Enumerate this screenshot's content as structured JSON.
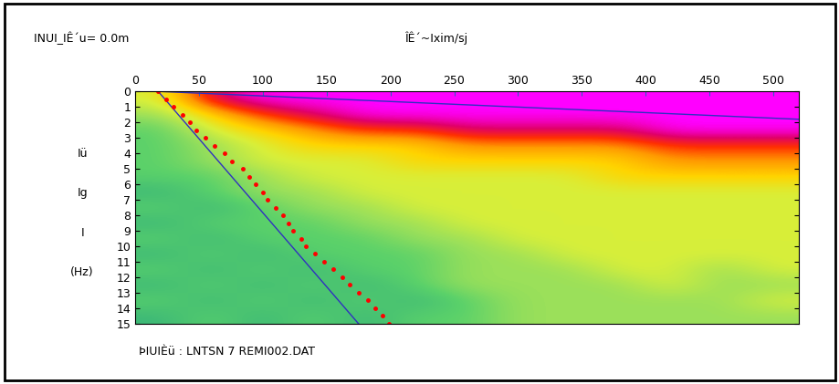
{
  "chart_data": {
    "type": "heatmap",
    "title": "ÎÊ´~Ixim/sj",
    "subtitle": "INUI_IÊ´u= 0.0m",
    "footer": "ÞIUIÈü : LNTSN 7 REMI002.DAT",
    "ylabel": [
      "Iü",
      "Ig",
      "I",
      "(Hz)"
    ],
    "xlim": [
      0,
      520
    ],
    "xticks": [
      0,
      50,
      100,
      150,
      200,
      250,
      300,
      350,
      400,
      450,
      500
    ],
    "ylim": [
      15,
      0
    ],
    "yticks": [
      0,
      1,
      2,
      3,
      4,
      5,
      6,
      7,
      8,
      9,
      10,
      11,
      12,
      13,
      14,
      15
    ],
    "x_edges": [
      0,
      40,
      80,
      120,
      160,
      200,
      240,
      280,
      320,
      360,
      400,
      440,
      480,
      520
    ],
    "y_edges": [
      0,
      1,
      2,
      3,
      4,
      5,
      6,
      7,
      8,
      9,
      10,
      11,
      12,
      13,
      14,
      15
    ],
    "color_range": [
      0,
      10
    ],
    "cells": [
      [
        5,
        9,
        10,
        10,
        10,
        10,
        10,
        10,
        10,
        10,
        10,
        10,
        10
      ],
      [
        4,
        6,
        8,
        9,
        10,
        10,
        10,
        10,
        10,
        10,
        10,
        10,
        10
      ],
      [
        3,
        5,
        6,
        7,
        8,
        8,
        9,
        9,
        9,
        9,
        10,
        10,
        10
      ],
      [
        3,
        4,
        5,
        6,
        6,
        6,
        7,
        7,
        7,
        7,
        8,
        8,
        8
      ],
      [
        3,
        4,
        5,
        5,
        5,
        6,
        6,
        6,
        6,
        6,
        7,
        7,
        7
      ],
      [
        3,
        3,
        4,
        5,
        5,
        5,
        5,
        5,
        5,
        6,
        6,
        6,
        6
      ],
      [
        2,
        3,
        4,
        4,
        5,
        5,
        5,
        5,
        5,
        5,
        5,
        5,
        5
      ],
      [
        3,
        2,
        3,
        4,
        4,
        5,
        5,
        5,
        5,
        5,
        5,
        5,
        5
      ],
      [
        2,
        3,
        3,
        3,
        4,
        4,
        5,
        5,
        5,
        5,
        5,
        5,
        5
      ],
      [
        3,
        2,
        3,
        3,
        3,
        4,
        4,
        5,
        5,
        5,
        5,
        5,
        5
      ],
      [
        2,
        3,
        2,
        3,
        3,
        3,
        4,
        4,
        5,
        5,
        5,
        5,
        5
      ],
      [
        3,
        2,
        3,
        2,
        3,
        3,
        4,
        4,
        4,
        5,
        5,
        4,
        5
      ],
      [
        2,
        3,
        2,
        3,
        2,
        3,
        4,
        4,
        4,
        4,
        5,
        4,
        4
      ],
      [
        3,
        2,
        3,
        2,
        3,
        2,
        3,
        4,
        4,
        4,
        4,
        4,
        5
      ],
      [
        2,
        3,
        2,
        3,
        2,
        3,
        3,
        4,
        4,
        4,
        4,
        4,
        4
      ]
    ],
    "colors": [
      "#1f7a5a",
      "#2e9a6a",
      "#3cb878",
      "#5ad16a",
      "#9be05a",
      "#d8ef3a",
      "#ffd400",
      "#ff9a00",
      "#ff3000",
      "#e0006a",
      "#ff00ff"
    ],
    "picks": {
      "color": "#ff0000",
      "marker": "o",
      "x": [
        18,
        24,
        30,
        37,
        43,
        48,
        55,
        62,
        70,
        76,
        84,
        89,
        94,
        100,
        104,
        110,
        116,
        120,
        124,
        130,
        134,
        141,
        148,
        155,
        162,
        168,
        175,
        182,
        188,
        194,
        199
      ],
      "y": [
        0,
        0.5,
        1,
        1.5,
        2,
        2.5,
        3,
        3.5,
        4,
        4.5,
        5,
        5.5,
        6,
        6.5,
        7,
        7.5,
        8,
        8.5,
        9,
        9.5,
        10,
        10.5,
        11,
        11.5,
        12,
        12.5,
        13,
        13.5,
        14,
        14.5,
        15
      ]
    },
    "lines": [
      {
        "color": "#3030c0",
        "line_style": "solid",
        "x": [
          18,
          175
        ],
        "y": [
          0,
          15
        ]
      },
      {
        "color": "#3030c0",
        "line_style": "solid",
        "x": [
          18,
          520
        ],
        "y": [
          0,
          1.8
        ]
      }
    ]
  }
}
